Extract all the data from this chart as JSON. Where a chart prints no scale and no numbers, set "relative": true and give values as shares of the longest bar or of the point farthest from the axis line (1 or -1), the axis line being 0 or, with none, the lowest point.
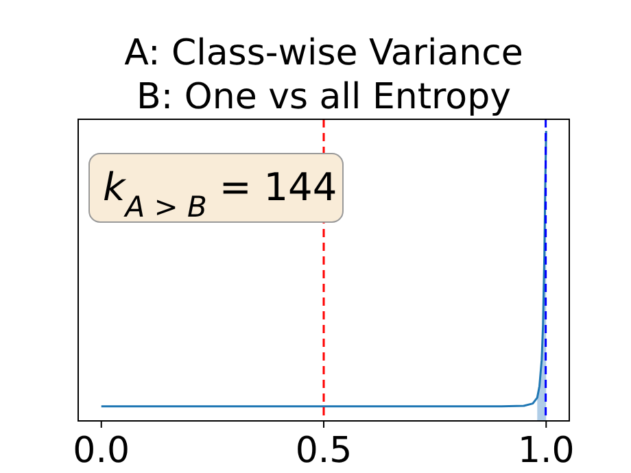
{
  "chart_data": {
    "type": "line",
    "title": "A: Class-wise Variance",
    "subtitle": "B: One vs all Entropy",
    "relative": true,
    "x": [
      0,
      0.5,
      0.9,
      0.95,
      0.97,
      0.98,
      0.985,
      0.99,
      0.993,
      0.996,
      0.998,
      1.0
    ],
    "series": [
      {
        "color": "#1f77b4",
        "values": [
          0.05,
          0.05,
          0.05,
          0.052,
          0.06,
          0.08,
          0.12,
          0.21,
          0.33,
          0.57,
          0.81,
          1
        ]
      },
      {
        "type": "area",
        "color": "#a6c8e4",
        "x": [
          0.98,
          0.985,
          0.99,
          0.993,
          0.996,
          0.998,
          1.0
        ],
        "values": [
          0.08,
          0.12,
          0.21,
          0.33,
          0.57,
          0.81,
          1
        ]
      }
    ],
    "xlim": [
      -0.052,
      1.052
    ],
    "xticks": [
      {
        "value": 0,
        "label": "0.0"
      },
      {
        "value": 0.5,
        "label": "0.5"
      },
      {
        "value": 1,
        "label": "1.0"
      }
    ],
    "tick_labels": "x",
    "ref_lines": [
      {
        "axis": "x",
        "value": 0.5,
        "color": "#ff0000",
        "line_style": "dashed"
      },
      {
        "axis": "x",
        "value": 0.999,
        "color": "#0000ff",
        "line_style": "dashed"
      }
    ],
    "annotations": [
      "k$_{A > B}$ = 144"
    ]
  }
}
